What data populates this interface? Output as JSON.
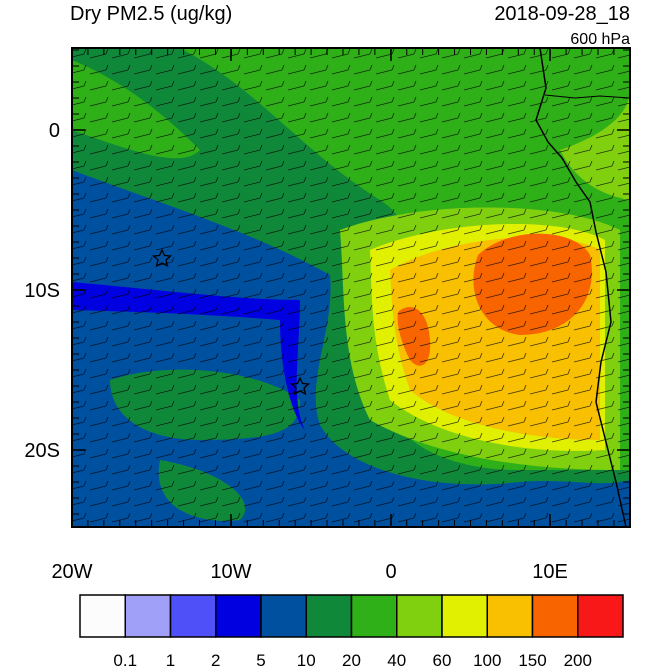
{
  "header": {
    "title": "Dry PM2.5 (ug/kg)",
    "date": "2018-09-28_18",
    "level": "600 hPa"
  },
  "axes": {
    "x_labels": [
      "20W",
      "10W",
      "0",
      "10E"
    ],
    "y_labels": [
      "0",
      "10S",
      "20S"
    ]
  },
  "colorbar": {
    "levels": [
      0.1,
      1,
      2,
      5,
      10,
      20,
      40,
      60,
      100,
      150,
      200
    ],
    "colors": [
      "#fcfcfc",
      "#a0a0f8",
      "#5050f8",
      "#0000e0",
      "#0050a0",
      "#10883a",
      "#30b018",
      "#80d010",
      "#e0f000",
      "#f8c000",
      "#f86400",
      "#f81818"
    ]
  }
}
